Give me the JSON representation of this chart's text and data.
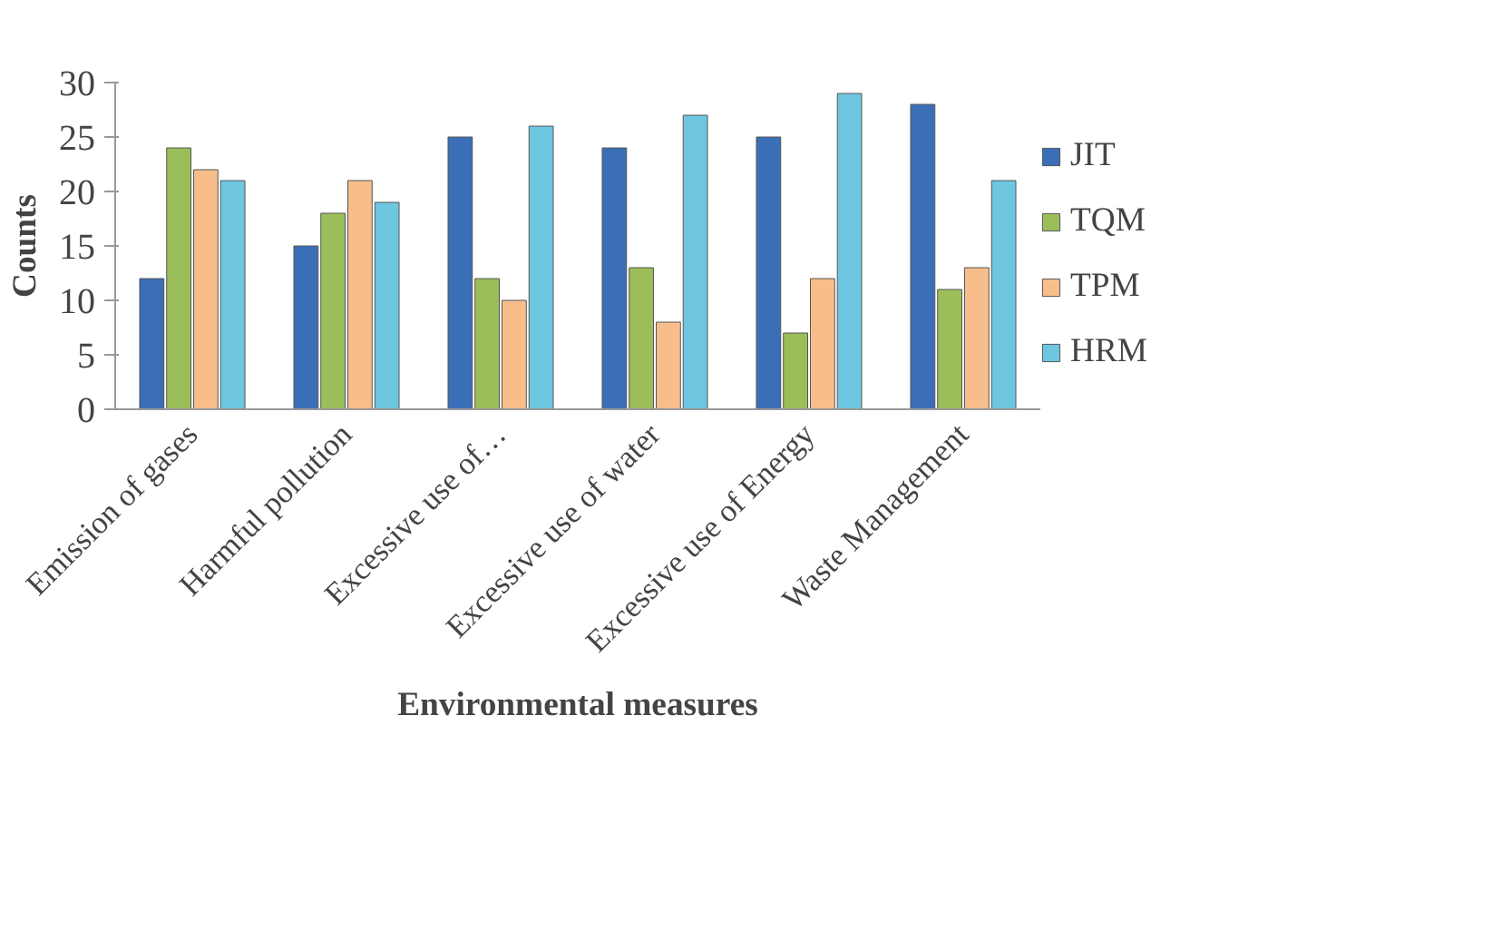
{
  "chart_data": {
    "type": "bar",
    "xlabel": "Environmental measures",
    "ylabel": "Counts",
    "categories": [
      "Emission of gases",
      "Harmful pollution",
      "Excessive use of…",
      "Excessive use of water",
      "Excessive use of Energy",
      "Waste Management"
    ],
    "series": [
      {
        "name": "JIT",
        "color": "#3a6fb8",
        "values": [
          12,
          15,
          25,
          24,
          25,
          28
        ]
      },
      {
        "name": "TQM",
        "color": "#9cbe5a",
        "values": [
          24,
          18,
          12,
          13,
          7,
          11
        ]
      },
      {
        "name": "TPM",
        "color": "#f7be8c",
        "values": [
          22,
          21,
          10,
          8,
          12,
          13
        ]
      },
      {
        "name": "HRM",
        "color": "#6ec6e0",
        "values": [
          21,
          19,
          26,
          27,
          29,
          21
        ]
      }
    ],
    "ylim": [
      0,
      30
    ],
    "yticks": [
      0,
      5,
      10,
      15,
      20,
      25,
      30
    ],
    "grid": false,
    "legend": "right"
  }
}
